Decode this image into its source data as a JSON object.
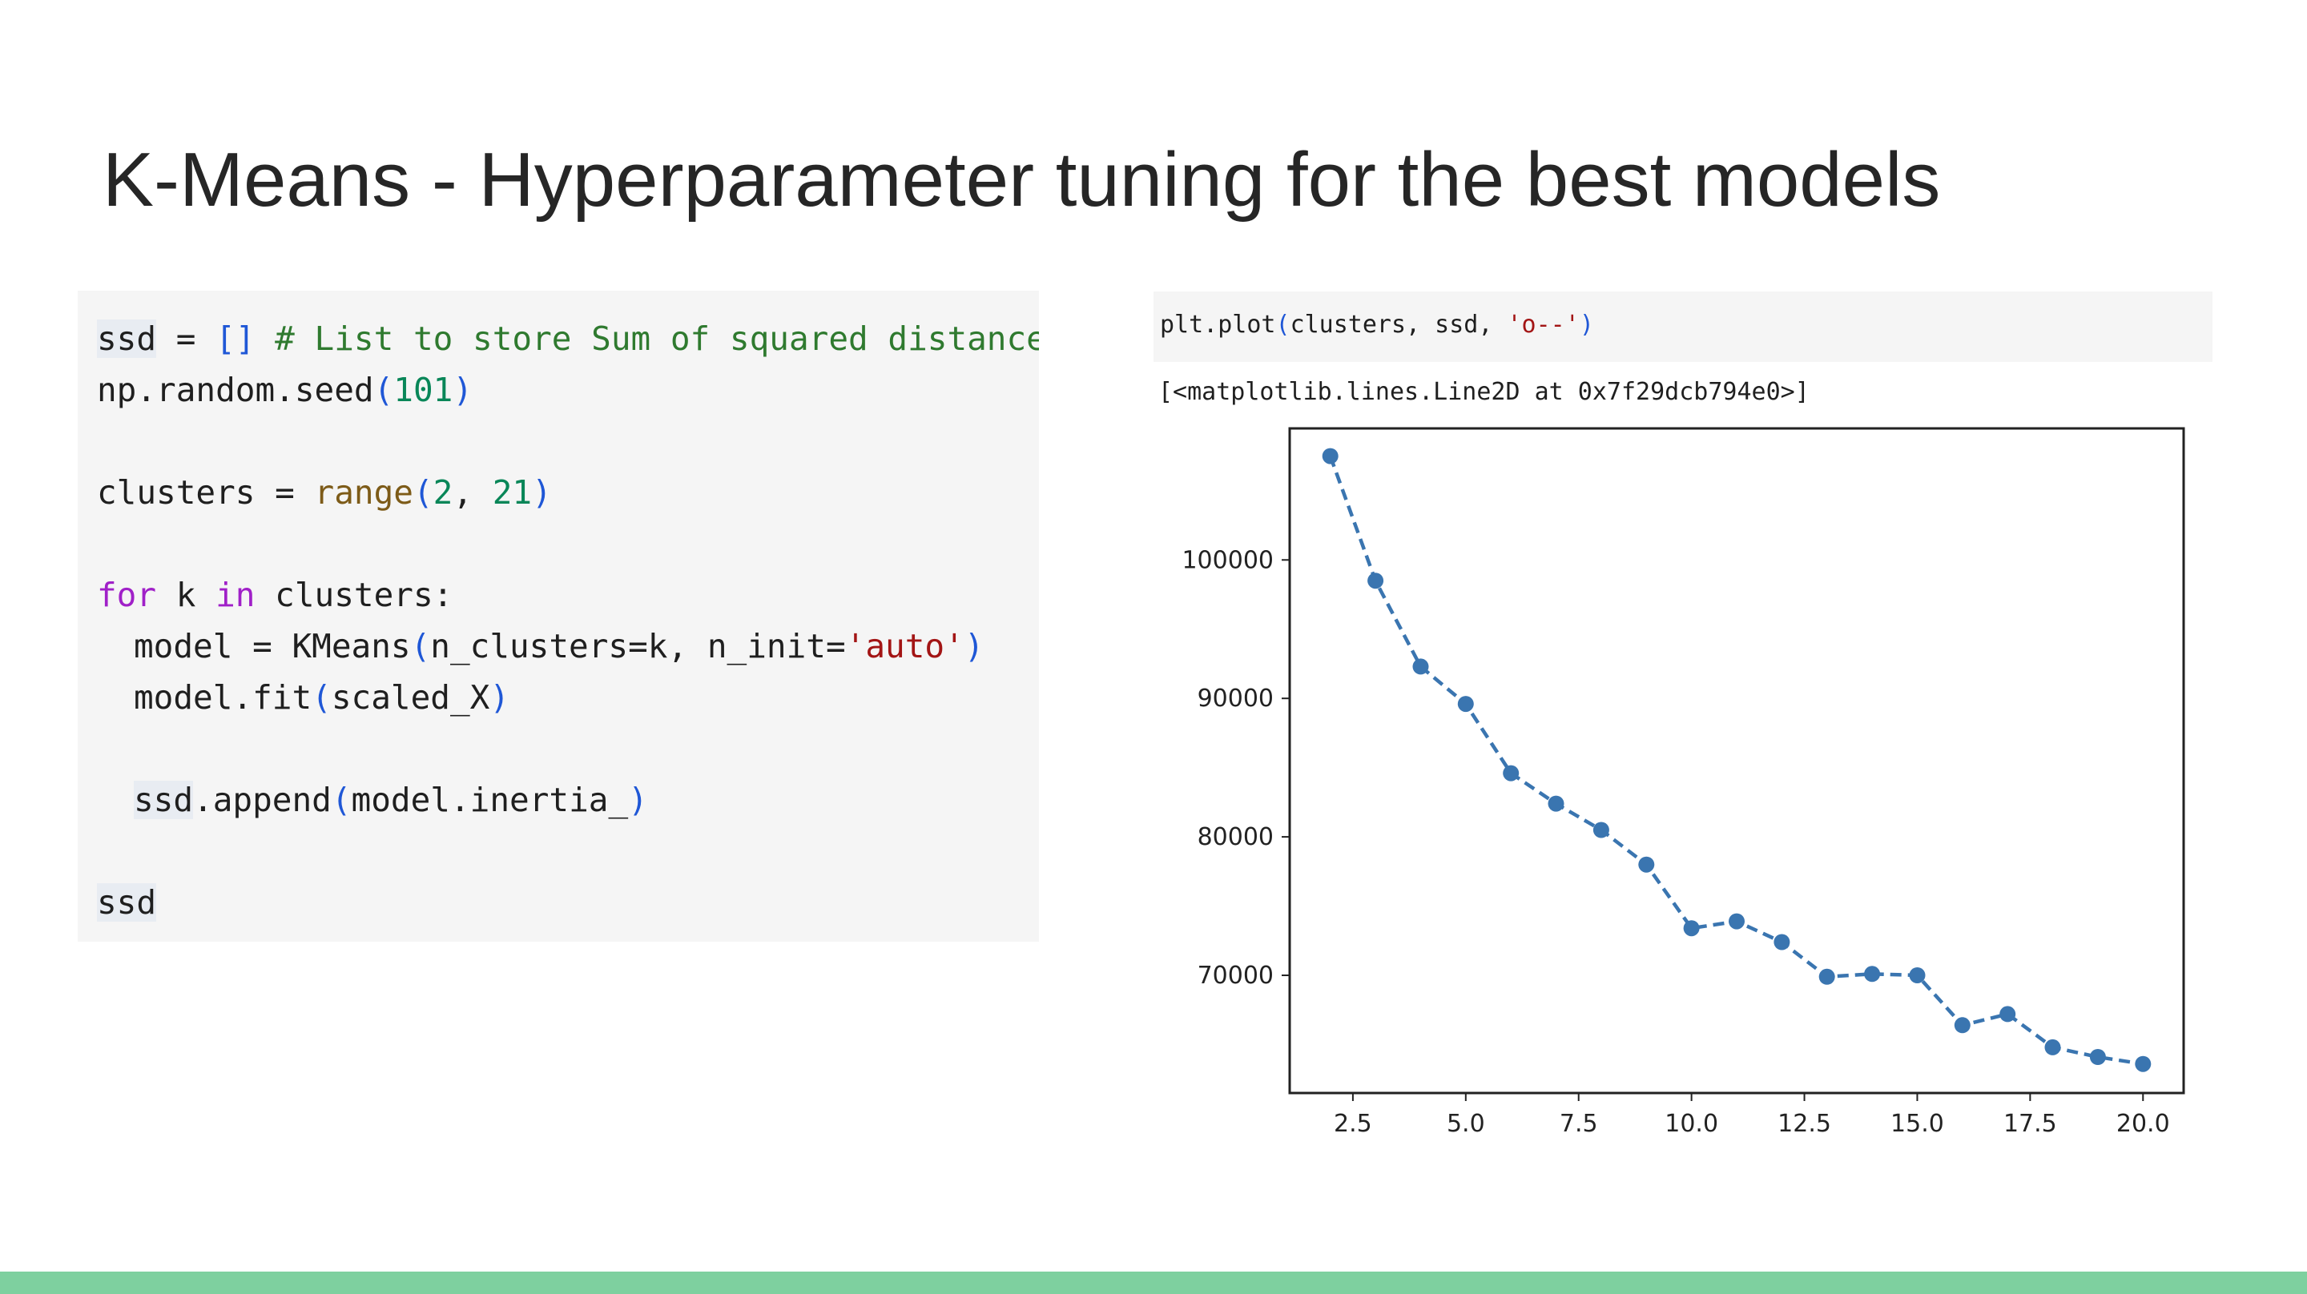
{
  "slide": {
    "title": "K-Means - Hyperparameter tuning for the best models"
  },
  "code_cell": {
    "line1": {
      "var": "ssd",
      "op": " = ",
      "brackets": "[]",
      "comment": " # List to store Sum of squared distances"
    },
    "line2": {
      "text": "np.random.seed",
      "open": "(",
      "num": "101",
      "close": ")"
    },
    "line3": {
      "lhs": "clusters = ",
      "fn": "range",
      "open": "(",
      "n1": "2",
      "sep": ", ",
      "n2": "21",
      "close": ")"
    },
    "line4": {
      "kw1": "for",
      "mid": " k ",
      "kw2": "in",
      "rest": " clusters:"
    },
    "line5": {
      "lhs": "model = KMeans",
      "open": "(",
      "args": "n_clusters=k, n_init=",
      "str": "'auto'",
      "close": ")"
    },
    "line6": {
      "text": "model.fit",
      "open": "(",
      "arg": "scaled_X",
      "close": ")"
    },
    "line7": {
      "var": "ssd",
      "text": ".append",
      "open": "(",
      "arg": "model.inertia_",
      "close": ")"
    },
    "line8": {
      "var": "ssd"
    }
  },
  "plot_cell": {
    "code_prefix": "plt.plot",
    "code_open": "(",
    "code_args": "clusters, ssd, ",
    "code_str": "'o--'",
    "code_close": ")",
    "output": "[<matplotlib.lines.Line2D at 0x7f29dcb794e0>]"
  },
  "colors": {
    "line": "#3a75b0",
    "bottom_bar": "#7ed09f",
    "code_bg": "#f5f5f5"
  },
  "chart_data": {
    "type": "line",
    "title": "",
    "xlabel": "",
    "ylabel": "",
    "marker": "o",
    "linestyle": "dashed",
    "x": [
      2,
      3,
      4,
      5,
      6,
      7,
      8,
      9,
      10,
      11,
      12,
      13,
      14,
      15,
      16,
      17,
      18,
      19,
      20
    ],
    "series": [
      {
        "values": [
          107500,
          98500,
          92300,
          89600,
          84600,
          82400,
          80500,
          78000,
          73400,
          73900,
          72400,
          69900,
          70100,
          70000,
          66400,
          67200,
          64800,
          64100,
          63600
        ]
      }
    ],
    "xlim": [
      1.1,
      20.9
    ],
    "ylim": [
      61500,
      109500
    ],
    "xticks": [
      2.5,
      5.0,
      7.5,
      10.0,
      12.5,
      15.0,
      17.5,
      20.0
    ],
    "xtick_labels": [
      "2.5",
      "5.0",
      "7.5",
      "10.0",
      "12.5",
      "15.0",
      "17.5",
      "20.0"
    ],
    "yticks": [
      70000,
      80000,
      90000,
      100000
    ],
    "ytick_labels": [
      "70000",
      "80000",
      "90000",
      "100000"
    ],
    "grid": false,
    "legend": false
  }
}
